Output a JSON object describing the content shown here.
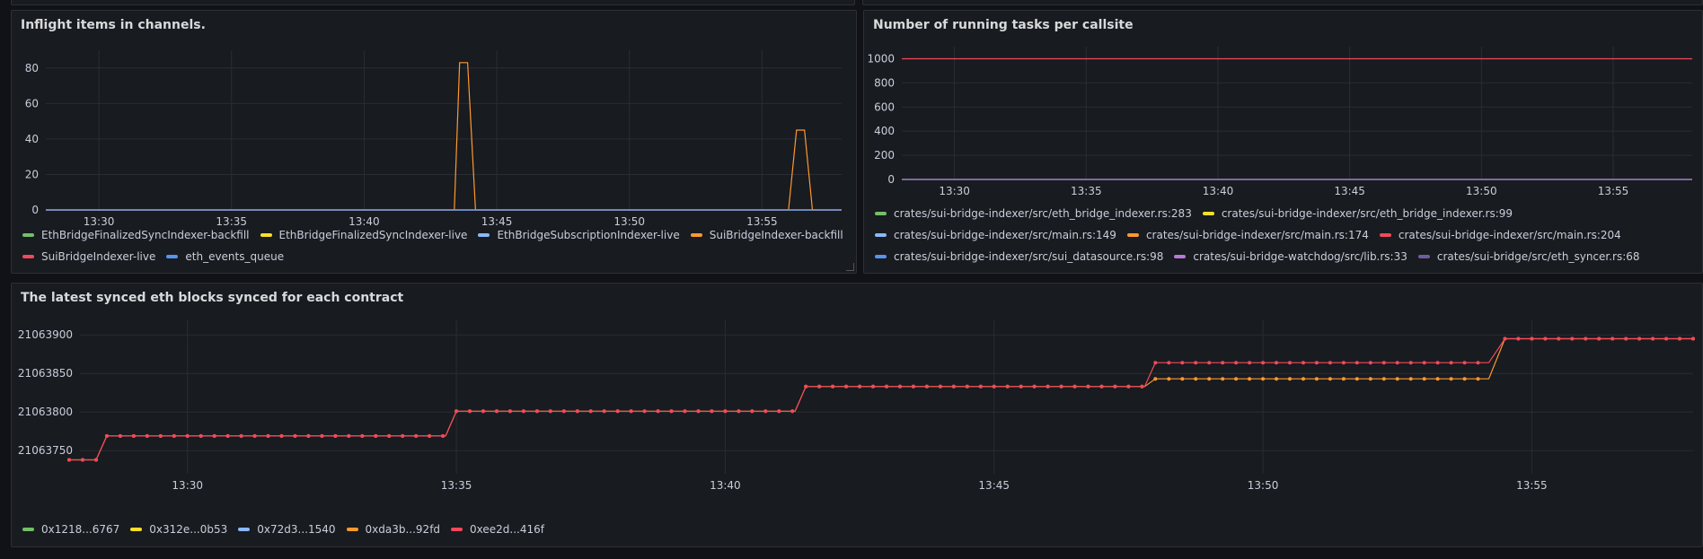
{
  "panels": [
    {
      "title": "Inflight items in channels.",
      "chart_data": {
        "type": "line",
        "title": "Inflight items in channels.",
        "x_ticks": [
          "13:30",
          "13:35",
          "13:40",
          "13:45",
          "13:50",
          "13:55"
        ],
        "x_range": [
          "13:28",
          "13:58"
        ],
        "ylim": [
          0,
          90
        ],
        "y_ticks": [
          0,
          20,
          40,
          60,
          80
        ],
        "series": [
          {
            "name": "EthBridgeFinalizedSyncIndexer-backfill",
            "color": "#73bf69",
            "points": [
              [
                "13:28",
                0
              ],
              [
                "13:58",
                0
              ]
            ]
          },
          {
            "name": "EthBridgeFinalizedSyncIndexer-live",
            "color": "#fade2a",
            "points": [
              [
                "13:28",
                0
              ],
              [
                "13:58",
                0
              ]
            ]
          },
          {
            "name": "EthBridgeSubscriptionIndexer-live",
            "color": "#8ab8ff",
            "points": [
              [
                "13:28",
                0
              ],
              [
                "13:58",
                0
              ]
            ]
          },
          {
            "name": "SuiBridgeIndexer-backfill",
            "color": "#ff9830",
            "points": [
              [
                "13:28",
                0
              ],
              [
                "13:43.4",
                0
              ],
              [
                "13:43.6",
                83
              ],
              [
                "13:43.9",
                83
              ],
              [
                "13:44.2",
                0
              ],
              [
                "13:56.0",
                0
              ],
              [
                "13:56.3",
                45
              ],
              [
                "13:56.6",
                45
              ],
              [
                "13:56.9",
                0
              ],
              [
                "13:58",
                0
              ]
            ]
          },
          {
            "name": "SuiBridgeIndexer-live",
            "color": "#f2495c",
            "points": [
              [
                "13:28",
                0
              ],
              [
                "13:58",
                0
              ]
            ]
          },
          {
            "name": "eth_events_queue",
            "color": "#5794f2",
            "points": [
              [
                "13:28",
                0
              ],
              [
                "13:58",
                0
              ]
            ]
          }
        ],
        "grid": true,
        "legend": "bottom"
      }
    },
    {
      "title": "Number of running tasks per callsite",
      "chart_data": {
        "type": "line",
        "title": "Number of running tasks per callsite",
        "x_ticks": [
          "13:30",
          "13:35",
          "13:40",
          "13:45",
          "13:50",
          "13:55"
        ],
        "x_range": [
          "13:28",
          "13:58"
        ],
        "ylim": [
          0,
          1100
        ],
        "y_ticks": [
          0,
          200,
          400,
          600,
          800,
          1000
        ],
        "series": [
          {
            "name": "crates/sui-bridge-indexer/src/eth_bridge_indexer.rs:283",
            "color": "#73bf69",
            "points": [
              [
                "13:28",
                0
              ],
              [
                "13:58",
                0
              ]
            ]
          },
          {
            "name": "crates/sui-bridge-indexer/src/eth_bridge_indexer.rs:99",
            "color": "#fade2a",
            "points": [
              [
                "13:28",
                0
              ],
              [
                "13:58",
                0
              ]
            ]
          },
          {
            "name": "crates/sui-bridge-indexer/src/main.rs:149",
            "color": "#8ab8ff",
            "points": [
              [
                "13:28",
                0
              ],
              [
                "13:58",
                0
              ]
            ]
          },
          {
            "name": "crates/sui-bridge-indexer/src/main.rs:174",
            "color": "#ff9830",
            "points": [
              [
                "13:28",
                0
              ],
              [
                "13:58",
                0
              ]
            ]
          },
          {
            "name": "crates/sui-bridge-indexer/src/main.rs:204",
            "color": "#f2495c",
            "points": [
              [
                "13:28",
                1000
              ],
              [
                "13:58",
                1000
              ]
            ]
          },
          {
            "name": "crates/sui-bridge-indexer/src/sui_datasource.rs:98",
            "color": "#5794f2",
            "points": [
              [
                "13:28",
                0
              ],
              [
                "13:58",
                0
              ]
            ]
          },
          {
            "name": "crates/sui-bridge-watchdog/src/lib.rs:33",
            "color": "#b877d9",
            "points": [
              [
                "13:28",
                0
              ],
              [
                "13:58",
                0
              ]
            ]
          },
          {
            "name": "crates/sui-bridge/src/eth_syncer.rs:68",
            "color": "#705da0",
            "points": [
              [
                "13:28",
                0
              ],
              [
                "13:58",
                0
              ]
            ]
          }
        ],
        "grid": true,
        "legend": "bottom"
      }
    },
    {
      "title": "The latest synced eth blocks synced for each contract",
      "chart_data": {
        "type": "line",
        "title": "The latest synced eth blocks synced for each contract",
        "x_ticks": [
          "13:30",
          "13:35",
          "13:40",
          "13:45",
          "13:50",
          "13:55"
        ],
        "x_range": [
          "13:28",
          "13:58"
        ],
        "ylim": [
          21063720,
          21063920
        ],
        "y_ticks": [
          21063750,
          21063800,
          21063850,
          21063900
        ],
        "y_tick_labels": [
          "21063750",
          "21063800",
          "21063850",
          "21063900"
        ],
        "series": [
          {
            "name": "0x1218...6767",
            "color": "#73bf69",
            "steps": []
          },
          {
            "name": "0x312e...0b53",
            "color": "#fade2a",
            "steps": []
          },
          {
            "name": "0x72d3...1540",
            "color": "#8ab8ff",
            "steps": []
          },
          {
            "name": "0xda3b...92fd",
            "color": "#ff9830",
            "steps": [
              [
                "13:27.8",
                21063738
              ],
              [
                "13:28.3",
                21063738
              ],
              [
                "13:28.5",
                21063769
              ],
              [
                "13:34.8",
                21063769
              ],
              [
                "13:35.0",
                21063801
              ],
              [
                "13:41.3",
                21063801
              ],
              [
                "13:41.5",
                21063833
              ],
              [
                "13:47.8",
                21063833
              ],
              [
                "13:48.0",
                21063843
              ],
              [
                "13:54.2",
                21063843
              ],
              [
                "13:54.5",
                21063895
              ],
              [
                "13:58.0",
                21063895
              ]
            ]
          },
          {
            "name": "0xee2d...416f",
            "color": "#f2495c",
            "steps": [
              [
                "13:27.8",
                21063738
              ],
              [
                "13:28.3",
                21063738
              ],
              [
                "13:28.5",
                21063769
              ],
              [
                "13:34.8",
                21063769
              ],
              [
                "13:35.0",
                21063801
              ],
              [
                "13:41.3",
                21063801
              ],
              [
                "13:41.5",
                21063833
              ],
              [
                "13:47.8",
                21063833
              ],
              [
                "13:48.0",
                21063864
              ],
              [
                "13:54.2",
                21063864
              ],
              [
                "13:54.5",
                21063895
              ],
              [
                "13:58.0",
                21063895
              ]
            ]
          }
        ],
        "grid": true,
        "legend": "bottom"
      }
    }
  ]
}
